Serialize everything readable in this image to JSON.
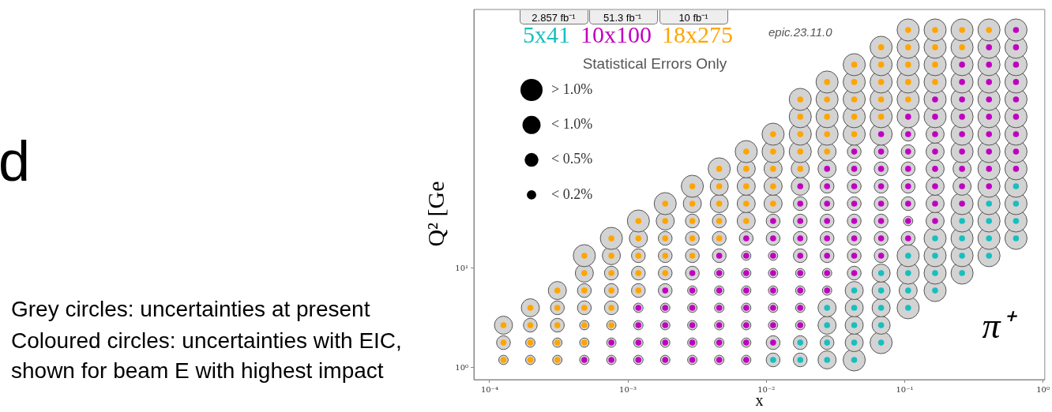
{
  "chart_data": {
    "type": "bubble",
    "log": "xy",
    "xlabel": "x",
    "ylabel": "Q² [Ge",
    "legend": "top left",
    "legend_title": "Statistical Errors Only",
    "marker": "circle",
    "size_legend": [
      {
        "value": 1,
        "label": "> 1.0%"
      },
      {
        "value": 0.67,
        "label": "< 1.0%"
      },
      {
        "value": 0.39,
        "label": "< 0.5%"
      },
      {
        "value": 0.18,
        "label": "< 0.2%"
      }
    ],
    "xlim": [
      7.7e-05,
      1.03
    ],
    "ylim": [
      0.76,
      4000
    ],
    "xticks": [
      {
        "value": 0.0001,
        "label": "10⁻⁴"
      },
      {
        "value": 0.001,
        "label": "10⁻³"
      },
      {
        "value": 0.01,
        "label": "10⁻²"
      },
      {
        "value": 0.1,
        "label": "10⁻¹"
      },
      {
        "value": 1,
        "label": "10⁰"
      }
    ],
    "yticks": [
      {
        "value": 1,
        "label": "10⁰"
      },
      {
        "value": 10,
        "label": "10¹"
      }
    ],
    "annotations": [
      "d",
      "2.857 fb⁻¹",
      "51.3 fb⁻¹",
      "10 fb⁻¹",
      "epic.23.11.0",
      "π⁺",
      "Grey circles: uncertainties at present",
      "Coloured circles: uncertainties with EIC,",
      "shown for beam E with highest impact"
    ],
    "series": [
      {
        "name": "5x41",
        "type": "scatter",
        "color": "#17bfbf",
        "x": [
          0.0112,
          0.0176,
          0.0176,
          0.0275,
          0.0275,
          0.0275,
          0.0275,
          0.0432,
          0.0432,
          0.0432,
          0.0432,
          0.0432,
          0.0676,
          0.0676,
          0.0676,
          0.0676,
          0.0676,
          0.106,
          0.106,
          0.106,
          0.106,
          0.166,
          0.166,
          0.166,
          0.166,
          0.26,
          0.26,
          0.26,
          0.26,
          0.407,
          0.407,
          0.407,
          0.407,
          0.638,
          0.638,
          0.638,
          0.638
        ],
        "values": [
          1.2,
          1.2,
          1.79,
          1.2,
          1.79,
          2.68,
          4.01,
          1.2,
          1.79,
          2.68,
          4.01,
          5.98,
          1.79,
          2.68,
          4.01,
          5.98,
          8.95,
          4.01,
          5.98,
          8.95,
          13.4,
          5.98,
          8.95,
          13.4,
          20,
          8.95,
          13.4,
          20,
          29.9,
          13.4,
          20,
          29.9,
          44.7,
          20,
          29.9,
          44.7,
          66.8
        ]
      },
      {
        "name": "10x100",
        "type": "scatter",
        "color": "#c000c0",
        "x": [
          0.000484,
          0.000759,
          0.000759,
          0.00119,
          0.00119,
          0.00119,
          0.00119,
          0.00186,
          0.00186,
          0.00186,
          0.00186,
          0.00186,
          0.00292,
          0.00292,
          0.00292,
          0.00292,
          0.00292,
          0.00292,
          0.00457,
          0.00457,
          0.00457,
          0.00457,
          0.00457,
          0.00457,
          0.00457,
          0.00716,
          0.00716,
          0.00716,
          0.00716,
          0.00716,
          0.00716,
          0.00716,
          0.00716,
          0.0112,
          0.0112,
          0.0112,
          0.0112,
          0.0112,
          0.0112,
          0.0112,
          0.0112,
          0.0176,
          0.0176,
          0.0176,
          0.0176,
          0.0176,
          0.0176,
          0.0176,
          0.0176,
          0.0176,
          0.0275,
          0.0275,
          0.0275,
          0.0275,
          0.0275,
          0.0275,
          0.0275,
          0.0275,
          0.0432,
          0.0432,
          0.0432,
          0.0432,
          0.0432,
          0.0432,
          0.0432,
          0.0432,
          0.0676,
          0.0676,
          0.0676,
          0.0676,
          0.0676,
          0.0676,
          0.0676,
          0.0676,
          0.106,
          0.106,
          0.106,
          0.106,
          0.106,
          0.106,
          0.106,
          0.106,
          0.166,
          0.166,
          0.166,
          0.166,
          0.166,
          0.166,
          0.166,
          0.166,
          0.26,
          0.26,
          0.26,
          0.26,
          0.26,
          0.26,
          0.26,
          0.26,
          0.26,
          0.407,
          0.407,
          0.407,
          0.407,
          0.407,
          0.407,
          0.407,
          0.407,
          0.407,
          0.638,
          0.638,
          0.638,
          0.638,
          0.638,
          0.638,
          0.638,
          0.638,
          0.638
        ],
        "values": [
          1.2,
          1.2,
          1.79,
          1.2,
          1.79,
          2.68,
          4.01,
          1.2,
          1.79,
          2.68,
          4.01,
          5.98,
          1.2,
          1.79,
          2.68,
          4.01,
          5.98,
          8.95,
          1.2,
          1.79,
          2.68,
          4.01,
          5.98,
          8.95,
          13.4,
          1.2,
          1.79,
          2.68,
          4.01,
          5.98,
          8.95,
          13.4,
          20,
          1.79,
          2.68,
          4.01,
          5.98,
          8.95,
          13.4,
          20,
          29.9,
          2.68,
          4.01,
          5.98,
          8.95,
          13.4,
          20,
          29.9,
          44.7,
          66.8,
          5.98,
          8.95,
          13.4,
          20,
          29.9,
          44.7,
          66.8,
          100,
          8.95,
          13.4,
          20,
          29.9,
          44.7,
          66.8,
          100,
          149,
          13.4,
          20,
          29.9,
          44.7,
          66.8,
          100,
          149,
          223,
          20,
          29.9,
          44.7,
          66.8,
          100,
          149,
          223,
          334,
          29.9,
          44.7,
          66.8,
          100,
          149,
          223,
          334,
          499,
          44.7,
          66.8,
          100,
          149,
          223,
          334,
          499,
          746,
          1115,
          66.8,
          100,
          149,
          223,
          334,
          499,
          746,
          1115,
          1667,
          100,
          149,
          223,
          334,
          499,
          746,
          1115,
          1667,
          2490
        ]
      },
      {
        "name": "18x275",
        "type": "scatter",
        "color": "#ffa500",
        "x": [
          0.000126,
          0.000126,
          0.000126,
          0.000197,
          0.000197,
          0.000197,
          0.000197,
          0.000309,
          0.000309,
          0.000309,
          0.000309,
          0.000309,
          0.000484,
          0.000484,
          0.000484,
          0.000484,
          0.000484,
          0.000484,
          0.000759,
          0.000759,
          0.000759,
          0.000759,
          0.000759,
          0.000759,
          0.00119,
          0.00119,
          0.00119,
          0.00119,
          0.00119,
          0.00186,
          0.00186,
          0.00186,
          0.00186,
          0.00186,
          0.00292,
          0.00292,
          0.00292,
          0.00292,
          0.00292,
          0.00457,
          0.00457,
          0.00457,
          0.00457,
          0.00457,
          0.00716,
          0.00716,
          0.00716,
          0.00716,
          0.00716,
          0.0112,
          0.0112,
          0.0112,
          0.0112,
          0.0112,
          0.0176,
          0.0176,
          0.0176,
          0.0176,
          0.0176,
          0.0275,
          0.0275,
          0.0275,
          0.0275,
          0.0275,
          0.0432,
          0.0432,
          0.0432,
          0.0432,
          0.0432,
          0.0676,
          0.0676,
          0.0676,
          0.0676,
          0.0676,
          0.106,
          0.106,
          0.106,
          0.106,
          0.106,
          0.166,
          0.166,
          0.166,
          0.166,
          0.26,
          0.26,
          0.407
        ],
        "values": [
          1.2,
          1.79,
          2.68,
          1.2,
          1.79,
          2.68,
          4.01,
          1.2,
          1.79,
          2.68,
          4.01,
          5.98,
          1.79,
          2.68,
          4.01,
          5.98,
          8.95,
          13.4,
          2.68,
          4.01,
          5.98,
          8.95,
          13.4,
          20,
          5.98,
          8.95,
          13.4,
          20,
          29.9,
          8.95,
          13.4,
          20,
          29.9,
          44.7,
          13.4,
          20,
          29.9,
          44.7,
          66.8,
          20,
          29.9,
          44.7,
          66.8,
          100,
          29.9,
          44.7,
          66.8,
          100,
          149,
          44.7,
          66.8,
          100,
          149,
          223,
          100,
          149,
          223,
          334,
          499,
          149,
          223,
          334,
          499,
          746,
          223,
          334,
          499,
          746,
          1115,
          334,
          499,
          746,
          1115,
          1667,
          499,
          746,
          1115,
          1667,
          2490,
          746,
          1115,
          1667,
          2490,
          1667,
          2490,
          2490
        ]
      },
      {
        "color": "#d3d3d3",
        "x": [
          0.000126,
          0.000126,
          0.000126,
          0.000197,
          0.000197,
          0.000197,
          0.000197,
          0.000309,
          0.000309,
          0.000309,
          0.000309,
          0.000309,
          0.000484,
          0.000484,
          0.000484,
          0.000484,
          0.000484,
          0.000484,
          0.000484,
          0.000759,
          0.000759,
          0.000759,
          0.000759,
          0.000759,
          0.000759,
          0.000759,
          0.000759,
          0.00119,
          0.00119,
          0.00119,
          0.00119,
          0.00119,
          0.00119,
          0.00119,
          0.00119,
          0.00119,
          0.00186,
          0.00186,
          0.00186,
          0.00186,
          0.00186,
          0.00186,
          0.00186,
          0.00186,
          0.00186,
          0.00186,
          0.00292,
          0.00292,
          0.00292,
          0.00292,
          0.00292,
          0.00292,
          0.00292,
          0.00292,
          0.00292,
          0.00292,
          0.00292,
          0.00457,
          0.00457,
          0.00457,
          0.00457,
          0.00457,
          0.00457,
          0.00457,
          0.00457,
          0.00457,
          0.00457,
          0.00457,
          0.00457,
          0.00716,
          0.00716,
          0.00716,
          0.00716,
          0.00716,
          0.00716,
          0.00716,
          0.00716,
          0.00716,
          0.00716,
          0.00716,
          0.00716,
          0.00716,
          0.0112,
          0.0112,
          0.0112,
          0.0112,
          0.0112,
          0.0112,
          0.0112,
          0.0112,
          0.0112,
          0.0112,
          0.0112,
          0.0112,
          0.0112,
          0.0112,
          0.0176,
          0.0176,
          0.0176,
          0.0176,
          0.0176,
          0.0176,
          0.0176,
          0.0176,
          0.0176,
          0.0176,
          0.0176,
          0.0176,
          0.0176,
          0.0176,
          0.0176,
          0.0176,
          0.0275,
          0.0275,
          0.0275,
          0.0275,
          0.0275,
          0.0275,
          0.0275,
          0.0275,
          0.0275,
          0.0275,
          0.0275,
          0.0275,
          0.0275,
          0.0275,
          0.0275,
          0.0275,
          0.0275,
          0.0432,
          0.0432,
          0.0432,
          0.0432,
          0.0432,
          0.0432,
          0.0432,
          0.0432,
          0.0432,
          0.0432,
          0.0432,
          0.0432,
          0.0432,
          0.0432,
          0.0432,
          0.0432,
          0.0432,
          0.0432,
          0.0676,
          0.0676,
          0.0676,
          0.0676,
          0.0676,
          0.0676,
          0.0676,
          0.0676,
          0.0676,
          0.0676,
          0.0676,
          0.0676,
          0.0676,
          0.0676,
          0.0676,
          0.0676,
          0.0676,
          0.0676,
          0.106,
          0.106,
          0.106,
          0.106,
          0.106,
          0.106,
          0.106,
          0.106,
          0.106,
          0.106,
          0.106,
          0.106,
          0.106,
          0.106,
          0.106,
          0.106,
          0.106,
          0.166,
          0.166,
          0.166,
          0.166,
          0.166,
          0.166,
          0.166,
          0.166,
          0.166,
          0.166,
          0.166,
          0.166,
          0.166,
          0.166,
          0.166,
          0.166,
          0.26,
          0.26,
          0.26,
          0.26,
          0.26,
          0.26,
          0.26,
          0.26,
          0.26,
          0.26,
          0.26,
          0.26,
          0.26,
          0.26,
          0.26,
          0.407,
          0.407,
          0.407,
          0.407,
          0.407,
          0.407,
          0.407,
          0.407,
          0.407,
          0.407,
          0.407,
          0.407,
          0.407,
          0.407,
          0.638,
          0.638,
          0.638,
          0.638,
          0.638,
          0.638,
          0.638,
          0.638,
          0.638,
          0.638,
          0.638,
          0.638,
          0.638
        ],
        "values": [
          1.2,
          1.79,
          2.68,
          1.2,
          1.79,
          2.68,
          4.01,
          1.2,
          1.79,
          2.68,
          4.01,
          5.98,
          1.2,
          1.79,
          2.68,
          4.01,
          5.98,
          8.95,
          13.4,
          1.2,
          1.79,
          2.68,
          4.01,
          5.98,
          8.95,
          13.4,
          20,
          1.2,
          1.79,
          2.68,
          4.01,
          5.98,
          8.95,
          13.4,
          20,
          29.9,
          1.2,
          1.79,
          2.68,
          4.01,
          5.98,
          8.95,
          13.4,
          20,
          29.9,
          44.7,
          1.2,
          1.79,
          2.68,
          4.01,
          5.98,
          8.95,
          13.4,
          20,
          29.9,
          44.7,
          66.8,
          1.2,
          1.79,
          2.68,
          4.01,
          5.98,
          8.95,
          13.4,
          20,
          29.9,
          44.7,
          66.8,
          100,
          1.2,
          1.79,
          2.68,
          4.01,
          5.98,
          8.95,
          13.4,
          20,
          29.9,
          44.7,
          66.8,
          100,
          149,
          1.2,
          1.79,
          2.68,
          4.01,
          5.98,
          8.95,
          13.4,
          20,
          29.9,
          44.7,
          66.8,
          100,
          149,
          223,
          1.2,
          1.79,
          2.68,
          4.01,
          5.98,
          8.95,
          13.4,
          20,
          29.9,
          44.7,
          66.8,
          100,
          149,
          223,
          334,
          499,
          1.2,
          1.79,
          2.68,
          4.01,
          5.98,
          8.95,
          13.4,
          20,
          29.9,
          44.7,
          66.8,
          100,
          149,
          223,
          334,
          499,
          746,
          1.2,
          1.79,
          2.68,
          4.01,
          5.98,
          8.95,
          13.4,
          20,
          29.9,
          44.7,
          66.8,
          100,
          149,
          223,
          334,
          499,
          746,
          1115,
          1.79,
          2.68,
          4.01,
          5.98,
          8.95,
          13.4,
          20,
          29.9,
          44.7,
          66.8,
          100,
          149,
          223,
          334,
          499,
          746,
          1115,
          1667,
          4.01,
          5.98,
          8.95,
          13.4,
          20,
          29.9,
          44.7,
          66.8,
          100,
          149,
          223,
          334,
          499,
          746,
          1115,
          1667,
          2490,
          5.98,
          8.95,
          13.4,
          20,
          29.9,
          44.7,
          66.8,
          100,
          149,
          223,
          334,
          499,
          746,
          1115,
          1667,
          2490,
          8.95,
          13.4,
          20,
          29.9,
          44.7,
          66.8,
          100,
          149,
          223,
          334,
          499,
          746,
          1115,
          1667,
          2490,
          13.4,
          20,
          29.9,
          44.7,
          66.8,
          100,
          149,
          223,
          334,
          499,
          746,
          1115,
          1667,
          2490,
          20,
          29.9,
          44.7,
          66.8,
          100,
          149,
          223,
          334,
          499,
          746,
          1115,
          1667,
          2490
        ],
        "sizes": [
          0.18,
          0.39,
          0.67,
          0.18,
          0.18,
          0.39,
          0.67,
          0.18,
          0.18,
          0.39,
          0.39,
          0.67,
          0.18,
          0.18,
          0.18,
          0.39,
          0.39,
          0.67,
          1,
          0.18,
          0.18,
          0.18,
          0.39,
          0.39,
          0.39,
          0.67,
          1,
          0.18,
          0.18,
          0.18,
          0.18,
          0.39,
          0.39,
          0.39,
          0.67,
          1,
          0.18,
          0.18,
          0.18,
          0.18,
          0.39,
          0.39,
          0.39,
          0.39,
          0.67,
          1,
          0.18,
          0.18,
          0.18,
          0.18,
          0.18,
          0.39,
          0.39,
          0.39,
          0.39,
          0.67,
          1,
          0.18,
          0.18,
          0.18,
          0.18,
          0.18,
          0.18,
          0.39,
          0.39,
          0.39,
          0.67,
          0.67,
          1,
          0.18,
          0.18,
          0.18,
          0.18,
          0.18,
          0.18,
          0.18,
          0.39,
          0.67,
          0.67,
          0.67,
          0.67,
          1,
          0.39,
          0.39,
          0.18,
          0.18,
          0.18,
          0.18,
          0.18,
          0.39,
          0.39,
          0.67,
          0.67,
          0.67,
          1,
          1,
          0.39,
          0.39,
          0.18,
          0.18,
          0.18,
          0.18,
          0.39,
          0.39,
          0.39,
          0.39,
          0.67,
          0.67,
          1,
          1,
          1,
          1,
          0.67,
          0.39,
          0.67,
          0.67,
          0.18,
          0.18,
          0.39,
          0.39,
          0.39,
          0.39,
          0.39,
          0.67,
          0.67,
          1,
          1,
          1,
          1,
          1,
          0.67,
          0.67,
          0.67,
          0.67,
          0.39,
          0.39,
          0.39,
          0.39,
          0.39,
          0.39,
          0.39,
          0.39,
          1,
          1,
          1,
          1,
          1,
          1,
          0.67,
          0.67,
          0.67,
          0.67,
          0.39,
          0.39,
          0.39,
          0.39,
          0.39,
          0.39,
          0.39,
          1,
          1,
          1,
          1,
          1,
          1,
          1,
          0.67,
          1,
          1,
          0.39,
          0.18,
          0.39,
          0.39,
          0.39,
          0.39,
          0.39,
          1,
          1,
          1,
          1,
          1,
          1,
          1,
          1,
          1,
          1,
          0.67,
          0.67,
          0.67,
          0.67,
          0.67,
          0.67,
          1,
          1,
          1,
          1,
          1,
          1,
          1,
          1,
          1,
          1,
          1,
          0.67,
          0.67,
          1,
          1,
          1,
          1,
          1,
          1,
          1,
          1,
          1,
          1,
          1,
          1,
          1,
          1,
          1,
          1,
          1,
          1,
          1,
          1,
          1,
          1,
          1,
          1,
          1,
          1,
          1,
          1,
          1,
          1,
          1,
          1,
          1,
          1,
          1
        ]
      }
    ]
  }
}
